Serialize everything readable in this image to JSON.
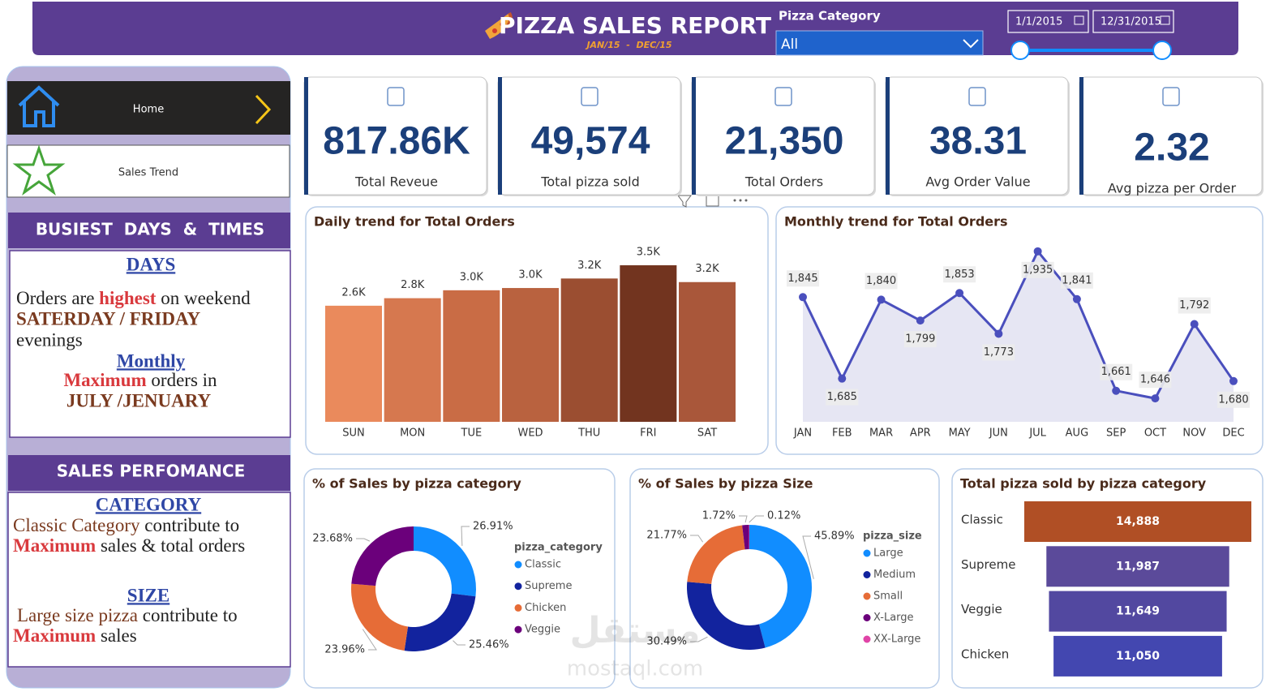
{
  "header": {
    "title": "PIZZA SALES REPORT",
    "subtitle": "JAN/15  -  DEC/15",
    "filter_label": "Pizza Category",
    "filter_value": "All",
    "date_from": "1/1/2015",
    "date_to": "12/31/2015"
  },
  "sidebar": {
    "nav": [
      "Home",
      "Sales Trend"
    ],
    "sections": [
      {
        "heading": "BUSIEST  DAYS  &  TIMES",
        "blocks": [
          {
            "title": "DAYS",
            "lines": [
              [
                "Orders are ",
                "highest",
                " on weekend"
              ],
              [
                "SATERDAY / FRIDAY"
              ],
              [
                "evenings"
              ]
            ]
          },
          {
            "title": "Monthly",
            "lines": [
              [
                "Maximum",
                " orders in"
              ],
              [
                "JULY /JENUARY"
              ]
            ]
          }
        ]
      },
      {
        "heading": "SALES PERFOMANCE",
        "blocks": [
          {
            "title": "CATEGORY",
            "lines": [
              [
                "Classic Category",
                " contribute to"
              ],
              [
                "Maximum",
                " sales & total orders"
              ]
            ]
          },
          {
            "title": "SIZE",
            "lines": [
              [
                "Large size pizza",
                " contribute to"
              ],
              [
                "Maximum",
                " sales"
              ]
            ]
          }
        ]
      }
    ]
  },
  "kpis": [
    {
      "value": "817.86K",
      "label": "Total Reveue"
    },
    {
      "value": "49,574",
      "label": "Total pizza sold"
    },
    {
      "value": "21,350",
      "label": "Total Orders"
    },
    {
      "value": "38.31",
      "label": "Avg Order Value"
    },
    {
      "value": "2.32",
      "label": "Avg pizza per Order"
    }
  ],
  "chart_data": [
    {
      "type": "bar",
      "title": "Daily trend for Total Orders",
      "categories": [
        "SUN",
        "MON",
        "TUE",
        "WED",
        "THU",
        "FRI",
        "SAT"
      ],
      "values": [
        2624,
        2794,
        2973,
        3024,
        3239,
        3538,
        3158
      ],
      "value_labels": [
        "2.6K",
        "2.8K",
        "3.0K",
        "3.0K",
        "3.2K",
        "3.5K",
        "3.2K"
      ],
      "colors": [
        "#ea8a5c",
        "#d6784f",
        "#c96c45",
        "#b9623f",
        "#9b4e31",
        "#72341f",
        "#a9573a"
      ],
      "ylim": [
        0,
        3850
      ]
    },
    {
      "type": "line",
      "title": "Monthly trend for Total Orders",
      "categories": [
        "JAN",
        "FEB",
        "MAR",
        "APR",
        "MAY",
        "JUN",
        "JUL",
        "AUG",
        "SEP",
        "OCT",
        "NOV",
        "DEC"
      ],
      "values": [
        1845,
        1685,
        1840,
        1799,
        1853,
        1773,
        1935,
        1841,
        1661,
        1646,
        1792,
        1680
      ],
      "value_labels": [
        "1,845",
        "1,685",
        "1,840",
        "1,799",
        "1,853",
        "1,773",
        "1,935",
        "1,841",
        "1,661",
        "1,646",
        "1,792",
        "1,680"
      ],
      "color": "#4a4fbd",
      "area_color": "#e6e6f3",
      "ylim": [
        1600,
        1965
      ]
    },
    {
      "type": "donut",
      "title": "% of Sales by pizza category",
      "legend_title": "pizza_category",
      "categories": [
        "Classic",
        "Supreme",
        "Chicken",
        "Veggie"
      ],
      "values": [
        26.91,
        25.46,
        23.96,
        23.68
      ],
      "value_labels": [
        "26.91%",
        "25.46%",
        "23.96%",
        "23.68%"
      ],
      "colors": [
        "#118dff",
        "#12239e",
        "#e66c37",
        "#6b007b"
      ]
    },
    {
      "type": "donut",
      "title": "% of Sales by pizza Size",
      "legend_title": "pizza_size",
      "categories": [
        "Large",
        "Medium",
        "Small",
        "X-Large",
        "XX-Large"
      ],
      "values": [
        45.89,
        30.49,
        21.77,
        1.72,
        0.12
      ],
      "value_labels": [
        "45.89%",
        "30.49%",
        "21.77%",
        "1.72%",
        "0.12%"
      ],
      "colors": [
        "#118dff",
        "#12239e",
        "#e66c37",
        "#6b007b",
        "#e044a7"
      ]
    },
    {
      "type": "funnel",
      "title": "Total pizza sold by pizza category",
      "categories": [
        "Classic",
        "Supreme",
        "Veggie",
        "Chicken"
      ],
      "values": [
        14888,
        11987,
        11649,
        11050
      ],
      "value_labels": [
        "14,888",
        "11,987",
        "11,649",
        "11,050"
      ],
      "colors": [
        "#b04f25",
        "#5b4a9a",
        "#5248a0",
        "#4347b0"
      ]
    }
  ],
  "watermark": [
    "مستقل",
    "mostaql.com"
  ]
}
